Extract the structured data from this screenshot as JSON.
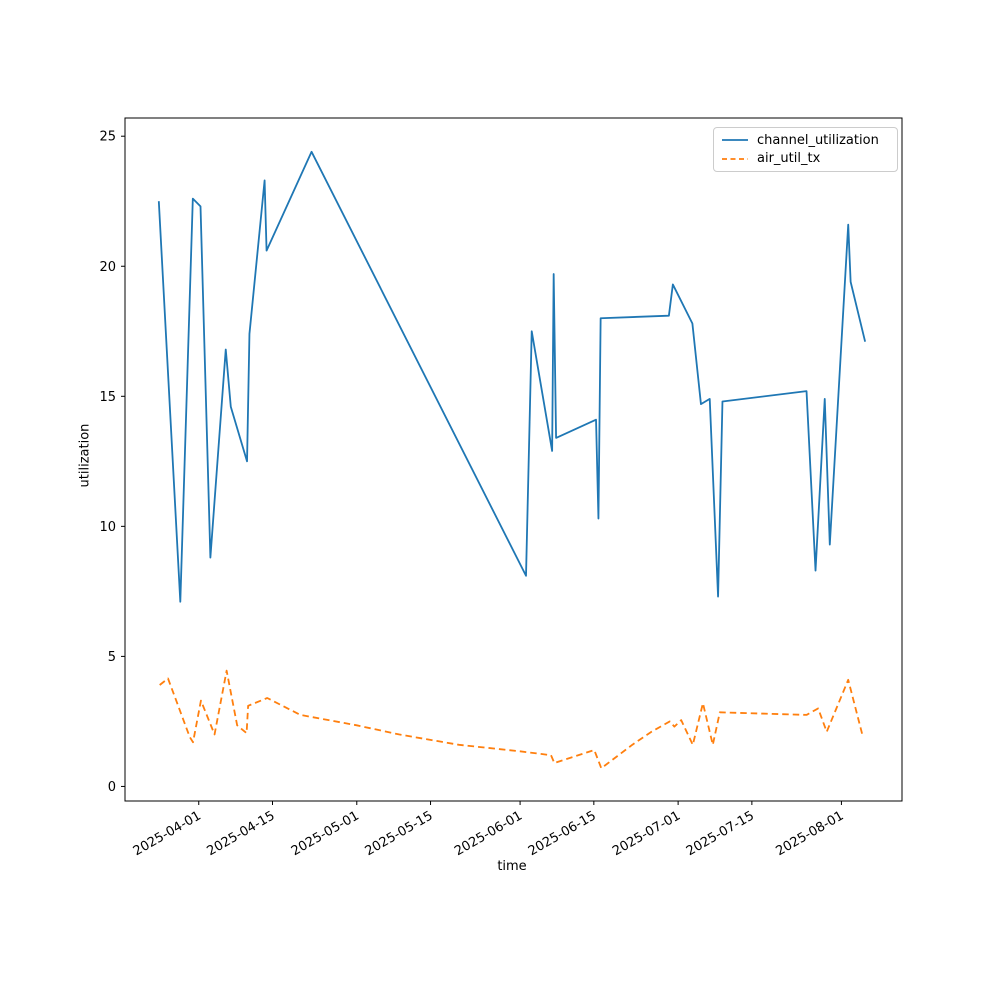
{
  "chart_data": {
    "type": "line",
    "title": "",
    "xlabel": "time",
    "ylabel": "utilization",
    "grid": false,
    "legend_position": "upper right",
    "xlim": [
      "2025-03-18T00:00",
      "2025-08-12T12:00"
    ],
    "ylim": [
      -0.56,
      25.7
    ],
    "xticks": [
      "2025-04-01",
      "2025-04-15",
      "2025-05-01",
      "2025-05-15",
      "2025-06-01",
      "2025-06-15",
      "2025-07-01",
      "2025-07-15",
      "2025-08-01"
    ],
    "yticks": [
      0,
      5,
      10,
      15,
      20,
      25
    ],
    "x_tick_rotation_deg": 30,
    "series": [
      {
        "name": "channel_utilization",
        "color": "#1f77b4",
        "style": "solid",
        "points": [
          [
            "2025-03-24T10:00",
            22.5
          ],
          [
            "2025-03-28T12:00",
            7.1
          ],
          [
            "2025-03-30T21:00",
            22.6
          ],
          [
            "2025-04-01T08:00",
            22.3
          ],
          [
            "2025-04-03T05:00",
            8.8
          ],
          [
            "2025-04-06T03:00",
            16.8
          ],
          [
            "2025-04-07T02:00",
            14.6
          ],
          [
            "2025-04-10T04:00",
            12.5
          ],
          [
            "2025-04-10T15:00",
            17.4
          ],
          [
            "2025-04-13T12:00",
            23.3
          ],
          [
            "2025-04-13T21:00",
            20.6
          ],
          [
            "2025-04-22T10:00",
            24.4
          ],
          [
            "2025-06-02T03:00",
            8.1
          ],
          [
            "2025-06-03T05:00",
            17.5
          ],
          [
            "2025-06-07T02:00",
            12.9
          ],
          [
            "2025-06-07T09:00",
            19.7
          ],
          [
            "2025-06-07T20:00",
            13.4
          ],
          [
            "2025-06-15T10:00",
            14.1
          ],
          [
            "2025-06-15T21:00",
            10.3
          ],
          [
            "2025-06-16T07:00",
            18.0
          ],
          [
            "2025-06-29T06:00",
            18.1
          ],
          [
            "2025-06-30T00:00",
            19.3
          ],
          [
            "2025-07-03T17:00",
            17.8
          ],
          [
            "2025-07-05T08:00",
            14.7
          ],
          [
            "2025-07-07T00:00",
            14.9
          ],
          [
            "2025-07-08T14:00",
            7.3
          ],
          [
            "2025-07-09T10:00",
            14.8
          ],
          [
            "2025-07-25T09:00",
            15.2
          ],
          [
            "2025-07-27T02:00",
            8.3
          ],
          [
            "2025-07-28T20:00",
            14.9
          ],
          [
            "2025-07-29T19:00",
            9.3
          ],
          [
            "2025-08-02T07:00",
            21.6
          ],
          [
            "2025-08-02T18:00",
            19.4
          ],
          [
            "2025-08-05T12:00",
            17.1
          ]
        ]
      },
      {
        "name": "air_util_tx",
        "color": "#ff7f0e",
        "style": "dashed",
        "points": [
          [
            "2025-03-24T14:00",
            3.9
          ],
          [
            "2025-03-26T04:00",
            4.15
          ],
          [
            "2025-03-30T07:00",
            1.9
          ],
          [
            "2025-03-30T22:00",
            1.7
          ],
          [
            "2025-04-01T10:00",
            3.3
          ],
          [
            "2025-04-04T00:00",
            2.0
          ],
          [
            "2025-04-06T07:00",
            4.45
          ],
          [
            "2025-04-08T07:00",
            2.35
          ],
          [
            "2025-04-10T02:00",
            2.05
          ],
          [
            "2025-04-10T09:00",
            3.1
          ],
          [
            "2025-04-14T00:00",
            3.4
          ],
          [
            "2025-04-20T07:00",
            2.75
          ],
          [
            "2025-05-01T00:00",
            2.35
          ],
          [
            "2025-05-09T00:00",
            2.0
          ],
          [
            "2025-05-20T10:00",
            1.6
          ],
          [
            "2025-06-01T00:00",
            1.35
          ],
          [
            "2025-06-06T21:00",
            1.2
          ],
          [
            "2025-06-07T12:00",
            0.9
          ],
          [
            "2025-06-15T02:00",
            1.4
          ],
          [
            "2025-06-16T10:00",
            0.7
          ],
          [
            "2025-06-22T07:00",
            1.6
          ],
          [
            "2025-06-25T22:00",
            2.1
          ],
          [
            "2025-06-29T10:00",
            2.5
          ],
          [
            "2025-06-30T07:00",
            2.3
          ],
          [
            "2025-07-01T14:00",
            2.55
          ],
          [
            "2025-07-03T19:00",
            1.6
          ],
          [
            "2025-07-05T17:00",
            3.2
          ],
          [
            "2025-07-07T14:00",
            1.6
          ],
          [
            "2025-07-08T22:00",
            2.85
          ],
          [
            "2025-07-25T09:00",
            2.75
          ],
          [
            "2025-07-27T14:00",
            3.0
          ],
          [
            "2025-07-29T05:00",
            2.1
          ],
          [
            "2025-08-02T07:00",
            4.1
          ],
          [
            "2025-08-05T02:00",
            1.9
          ]
        ]
      }
    ]
  }
}
